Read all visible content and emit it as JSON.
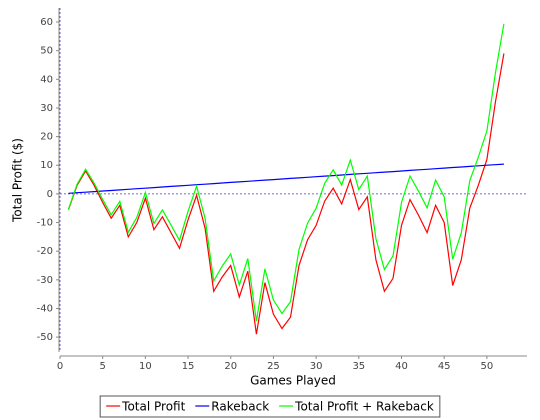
{
  "chart_data": {
    "type": "line",
    "x_label": "Games Played",
    "y_label": "Total Profit ($)",
    "x": [
      1,
      2,
      3,
      4,
      5,
      6,
      7,
      8,
      9,
      10,
      11,
      12,
      13,
      14,
      15,
      16,
      17,
      18,
      19,
      20,
      21,
      22,
      23,
      24,
      25,
      26,
      27,
      28,
      29,
      30,
      31,
      32,
      33,
      34,
      35,
      36,
      37,
      38,
      39,
      40,
      41,
      42,
      43,
      44,
      45,
      46,
      47,
      48,
      49,
      50,
      51,
      52
    ],
    "series": [
      {
        "name": "Total Profit",
        "color": "#ff0000",
        "values": [
          -5.5,
          3,
          8,
          3,
          -3,
          -8.5,
          -4,
          -15,
          -10,
          -1.5,
          -12.5,
          -8,
          -13.5,
          -19,
          -9,
          -0.5,
          -12,
          -34,
          -29,
          -25,
          -36,
          -27,
          -49,
          -31,
          -42,
          -47,
          -43,
          -25,
          -16,
          -11,
          -2.5,
          2,
          -3.5,
          5,
          -5.5,
          -1,
          -23,
          -34,
          -29.5,
          -11,
          -2,
          -7.5,
          -13.5,
          -4,
          -10,
          -32,
          -23,
          -5,
          3,
          12,
          32,
          49
        ]
      },
      {
        "name": "Rakeback",
        "color": "#0000ff",
        "values": [
          0.2,
          0.4,
          0.6,
          0.8,
          1,
          1.2,
          1.4,
          1.6,
          1.8,
          2,
          2.2,
          2.4,
          2.6,
          2.8,
          3,
          3.2,
          3.4,
          3.6,
          3.8,
          4,
          4.2,
          4.4,
          4.6,
          4.8,
          5,
          5.2,
          5.4,
          5.6,
          5.8,
          6,
          6.2,
          6.4,
          6.6,
          6.8,
          7,
          7.2,
          7.4,
          7.6,
          7.8,
          8,
          8.2,
          8.4,
          8.6,
          8.8,
          9,
          9.2,
          9.4,
          9.6,
          9.8,
          10,
          10.2,
          10.4
        ]
      },
      {
        "name": "Total Profit + Rakeback",
        "color": "#00ff00",
        "values": [
          -5.3,
          3.4,
          8.6,
          3.8,
          -2,
          -7.3,
          -2.6,
          -13.4,
          -8.2,
          0.5,
          -10.3,
          -5.6,
          -10.9,
          -16.2,
          -6,
          2.7,
          -8.6,
          -30.4,
          -25.2,
          -21,
          -31.8,
          -22.6,
          -44.4,
          -26.2,
          -37,
          -41.8,
          -37.6,
          -19.4,
          -10.2,
          -5,
          3.7,
          8.4,
          3.1,
          11.8,
          1.5,
          6.2,
          -15.6,
          -26.4,
          -21.7,
          -3,
          6.2,
          0.9,
          -4.9,
          4.8,
          -1,
          -22.8,
          -13.6,
          4.6,
          12.8,
          22,
          42.2,
          59.4
        ]
      }
    ],
    "xlim": [
      0,
      54.7
    ],
    "xticks": [
      0,
      5,
      10,
      15,
      20,
      25,
      30,
      35,
      40,
      45,
      50
    ],
    "ylim": [
      -55.2,
      64.9
    ],
    "yticks": [
      -50,
      -40,
      -30,
      -20,
      -10,
      0,
      10,
      20,
      30,
      40,
      50,
      60
    ],
    "legend": "bottom"
  }
}
